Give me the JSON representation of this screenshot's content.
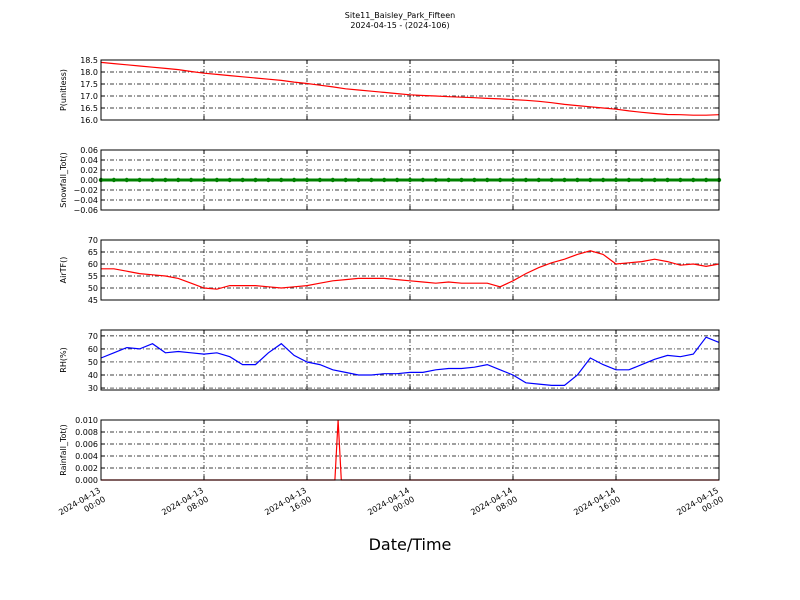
{
  "title": "Site11_Baisley_Park_Fifteen",
  "subtitle": "2024-04-15 - (2024-106)",
  "x_label": "Date/Time",
  "chart_data": [
    {
      "type": "line",
      "y_label": "P(unitless)",
      "color": "#ff0000",
      "xlim": [
        "2024-04-13 00:00",
        "2024-04-15 00:00"
      ],
      "x": [
        "2024-04-13 00:00",
        "2024-04-13 01:00",
        "2024-04-13 02:00",
        "2024-04-13 03:00",
        "2024-04-13 04:00",
        "2024-04-13 05:00",
        "2024-04-13 06:00",
        "2024-04-13 07:00",
        "2024-04-13 08:00",
        "2024-04-13 09:00",
        "2024-04-13 10:00",
        "2024-04-13 11:00",
        "2024-04-13 12:00",
        "2024-04-13 13:00",
        "2024-04-13 14:00",
        "2024-04-13 15:00",
        "2024-04-13 16:00",
        "2024-04-13 17:00",
        "2024-04-13 18:00",
        "2024-04-13 19:00",
        "2024-04-13 20:00",
        "2024-04-13 21:00",
        "2024-04-13 22:00",
        "2024-04-13 23:00",
        "2024-04-14 00:00",
        "2024-04-14 01:00",
        "2024-04-14 02:00",
        "2024-04-14 03:00",
        "2024-04-14 04:00",
        "2024-04-14 05:00",
        "2024-04-14 06:00",
        "2024-04-14 07:00",
        "2024-04-14 08:00",
        "2024-04-14 09:00",
        "2024-04-14 10:00",
        "2024-04-14 11:00",
        "2024-04-14 12:00",
        "2024-04-14 13:00",
        "2024-04-14 14:00",
        "2024-04-14 15:00",
        "2024-04-14 16:00",
        "2024-04-14 17:00",
        "2024-04-14 18:00",
        "2024-04-14 19:00",
        "2024-04-14 20:00",
        "2024-04-14 21:00",
        "2024-04-14 22:00",
        "2024-04-14 23:00",
        "2024-04-15 00:00"
      ],
      "values": [
        18.4,
        18.35,
        18.3,
        18.25,
        18.2,
        18.15,
        18.1,
        18.02,
        17.95,
        17.9,
        17.85,
        17.8,
        17.75,
        17.7,
        17.65,
        17.58,
        17.52,
        17.45,
        17.38,
        17.3,
        17.25,
        17.2,
        17.15,
        17.1,
        17.05,
        17.02,
        17.0,
        16.97,
        16.95,
        16.93,
        16.9,
        16.88,
        16.85,
        16.82,
        16.78,
        16.72,
        16.65,
        16.6,
        16.55,
        16.5,
        16.45,
        16.38,
        16.32,
        16.27,
        16.23,
        16.22,
        16.2,
        16.2,
        16.22
      ],
      "ylim": [
        16.0,
        18.5
      ],
      "yticks": [
        {
          "value": 16,
          "label": "16.0"
        },
        {
          "value": 16.5,
          "label": "16.5"
        },
        {
          "value": 17,
          "label": "17.0"
        },
        {
          "value": 17.5,
          "label": "17.5"
        },
        {
          "value": 18,
          "label": "18.0"
        },
        {
          "value": 18.5,
          "label": "18.5"
        }
      ],
      "grid": true
    },
    {
      "type": "line",
      "y_label": "Snowfall_Tot()",
      "color": "#008000",
      "marker": "o",
      "xlim": [
        "2024-04-13 00:00",
        "2024-04-15 00:00"
      ],
      "x": [
        "2024-04-13 00:00",
        "2024-04-13 01:00",
        "2024-04-13 02:00",
        "2024-04-13 03:00",
        "2024-04-13 04:00",
        "2024-04-13 05:00",
        "2024-04-13 06:00",
        "2024-04-13 07:00",
        "2024-04-13 08:00",
        "2024-04-13 09:00",
        "2024-04-13 10:00",
        "2024-04-13 11:00",
        "2024-04-13 12:00",
        "2024-04-13 13:00",
        "2024-04-13 14:00",
        "2024-04-13 15:00",
        "2024-04-13 16:00",
        "2024-04-13 17:00",
        "2024-04-13 18:00",
        "2024-04-13 19:00",
        "2024-04-13 20:00",
        "2024-04-13 21:00",
        "2024-04-13 22:00",
        "2024-04-13 23:00",
        "2024-04-14 00:00",
        "2024-04-14 01:00",
        "2024-04-14 02:00",
        "2024-04-14 03:00",
        "2024-04-14 04:00",
        "2024-04-14 05:00",
        "2024-04-14 06:00",
        "2024-04-14 07:00",
        "2024-04-14 08:00",
        "2024-04-14 09:00",
        "2024-04-14 10:00",
        "2024-04-14 11:00",
        "2024-04-14 12:00",
        "2024-04-14 13:00",
        "2024-04-14 14:00",
        "2024-04-14 15:00",
        "2024-04-14 16:00",
        "2024-04-14 17:00",
        "2024-04-14 18:00",
        "2024-04-14 19:00",
        "2024-04-14 20:00",
        "2024-04-14 21:00",
        "2024-04-14 22:00",
        "2024-04-14 23:00",
        "2024-04-15 00:00"
      ],
      "values": [
        0,
        0,
        0,
        0,
        0,
        0,
        0,
        0,
        0,
        0,
        0,
        0,
        0,
        0,
        0,
        0,
        0,
        0,
        0,
        0,
        0,
        0,
        0,
        0,
        0,
        0,
        0,
        0,
        0,
        0,
        0,
        0,
        0,
        0,
        0,
        0,
        0,
        0,
        0,
        0,
        0,
        0,
        0,
        0,
        0,
        0,
        0,
        0,
        0
      ],
      "ylim": [
        -0.06,
        0.06
      ],
      "yticks": [
        {
          "value": -0.06,
          "label": "−0.06"
        },
        {
          "value": -0.04,
          "label": "−0.04"
        },
        {
          "value": -0.02,
          "label": "−0.02"
        },
        {
          "value": 0,
          "label": "0.00"
        },
        {
          "value": 0.02,
          "label": "0.02"
        },
        {
          "value": 0.04,
          "label": "0.04"
        },
        {
          "value": 0.06,
          "label": "0.06"
        }
      ],
      "grid": true
    },
    {
      "type": "line",
      "y_label": "AirTF()",
      "color": "#ff0000",
      "xlim": [
        "2024-04-13 00:00",
        "2024-04-15 00:00"
      ],
      "x": [
        "2024-04-13 00:00",
        "2024-04-13 01:00",
        "2024-04-13 02:00",
        "2024-04-13 03:00",
        "2024-04-13 04:00",
        "2024-04-13 05:00",
        "2024-04-13 06:00",
        "2024-04-13 07:00",
        "2024-04-13 08:00",
        "2024-04-13 09:00",
        "2024-04-13 10:00",
        "2024-04-13 11:00",
        "2024-04-13 12:00",
        "2024-04-13 13:00",
        "2024-04-13 14:00",
        "2024-04-13 15:00",
        "2024-04-13 16:00",
        "2024-04-13 17:00",
        "2024-04-13 18:00",
        "2024-04-13 19:00",
        "2024-04-13 20:00",
        "2024-04-13 21:00",
        "2024-04-13 22:00",
        "2024-04-13 23:00",
        "2024-04-14 00:00",
        "2024-04-14 01:00",
        "2024-04-14 02:00",
        "2024-04-14 03:00",
        "2024-04-14 04:00",
        "2024-04-14 05:00",
        "2024-04-14 06:00",
        "2024-04-14 07:00",
        "2024-04-14 08:00",
        "2024-04-14 09:00",
        "2024-04-14 10:00",
        "2024-04-14 11:00",
        "2024-04-14 12:00",
        "2024-04-14 13:00",
        "2024-04-14 14:00",
        "2024-04-14 15:00",
        "2024-04-14 16:00",
        "2024-04-14 17:00",
        "2024-04-14 18:00",
        "2024-04-14 19:00",
        "2024-04-14 20:00",
        "2024-04-14 21:00",
        "2024-04-14 22:00",
        "2024-04-14 23:00",
        "2024-04-15 00:00"
      ],
      "values": [
        58,
        58,
        57,
        56,
        55.5,
        55,
        54,
        52,
        50,
        49.5,
        51,
        51,
        51,
        50.5,
        50,
        50.5,
        51,
        52,
        53,
        53.5,
        54,
        54,
        54,
        53.5,
        53,
        52.5,
        52,
        52.5,
        52,
        52,
        52,
        50.5,
        53,
        56,
        58.5,
        60.5,
        62,
        64,
        65.5,
        64,
        60,
        60.5,
        61,
        62,
        61,
        59.5,
        60,
        59,
        60
      ],
      "ylim": [
        45,
        70
      ],
      "yticks": [
        45,
        50,
        55,
        60,
        65,
        70
      ],
      "grid": true
    },
    {
      "type": "line",
      "y_label": "RH(%)",
      "color": "#0000ff",
      "xlim": [
        "2024-04-13 00:00",
        "2024-04-15 00:00"
      ],
      "x": [
        "2024-04-13 00:00",
        "2024-04-13 01:00",
        "2024-04-13 02:00",
        "2024-04-13 03:00",
        "2024-04-13 04:00",
        "2024-04-13 05:00",
        "2024-04-13 06:00",
        "2024-04-13 07:00",
        "2024-04-13 08:00",
        "2024-04-13 09:00",
        "2024-04-13 10:00",
        "2024-04-13 11:00",
        "2024-04-13 12:00",
        "2024-04-13 13:00",
        "2024-04-13 14:00",
        "2024-04-13 15:00",
        "2024-04-13 16:00",
        "2024-04-13 17:00",
        "2024-04-13 18:00",
        "2024-04-13 19:00",
        "2024-04-13 20:00",
        "2024-04-13 21:00",
        "2024-04-13 22:00",
        "2024-04-13 23:00",
        "2024-04-14 00:00",
        "2024-04-14 01:00",
        "2024-04-14 02:00",
        "2024-04-14 03:00",
        "2024-04-14 04:00",
        "2024-04-14 05:00",
        "2024-04-14 06:00",
        "2024-04-14 07:00",
        "2024-04-14 08:00",
        "2024-04-14 09:00",
        "2024-04-14 10:00",
        "2024-04-14 11:00",
        "2024-04-14 12:00",
        "2024-04-14 13:00",
        "2024-04-14 14:00",
        "2024-04-14 15:00",
        "2024-04-14 16:00",
        "2024-04-14 17:00",
        "2024-04-14 18:00",
        "2024-04-14 19:00",
        "2024-04-14 20:00",
        "2024-04-14 21:00",
        "2024-04-14 22:00",
        "2024-04-14 23:00",
        "2024-04-15 00:00"
      ],
      "values": [
        53,
        57,
        61,
        60,
        64,
        57,
        58,
        57,
        56,
        57,
        54,
        48,
        48,
        57,
        64,
        55,
        50,
        48,
        44,
        42,
        40,
        40,
        41,
        41,
        42,
        42,
        44,
        45,
        45,
        46,
        48,
        44,
        40,
        34,
        33,
        32,
        32,
        40,
        53,
        48,
        44,
        44,
        48,
        52,
        55,
        54,
        56,
        69,
        65
      ],
      "ylim": [
        28.5,
        74.5
      ],
      "yticks": [
        30,
        40,
        50,
        60,
        70
      ],
      "grid": true
    },
    {
      "type": "line",
      "y_label": "Rainfall_Tot()",
      "color": "#ff0000",
      "xlim": [
        "2024-04-13 00:00",
        "2024-04-15 00:00"
      ],
      "x": [
        "2024-04-13 00:00",
        "2024-04-13 18:10",
        "2024-04-13 18:25",
        "2024-04-13 18:40",
        "2024-04-15 00:00"
      ],
      "values": [
        0,
        0,
        0.01,
        0,
        0
      ],
      "ylim": [
        0,
        0.01
      ],
      "yticks": [
        {
          "value": 0,
          "label": "0.000"
        },
        {
          "value": 0.002,
          "label": "0.002"
        },
        {
          "value": 0.004,
          "label": "0.004"
        },
        {
          "value": 0.006,
          "label": "0.006"
        },
        {
          "value": 0.008,
          "label": "0.008"
        },
        {
          "value": 0.01,
          "label": "0.010"
        }
      ],
      "xticks": [
        "2024-04-13 00:00",
        "2024-04-13 08:00",
        "2024-04-13 16:00",
        "2024-04-14 00:00",
        "2024-04-14 08:00",
        "2024-04-14 16:00",
        "2024-04-15 00:00"
      ],
      "grid": true
    }
  ]
}
